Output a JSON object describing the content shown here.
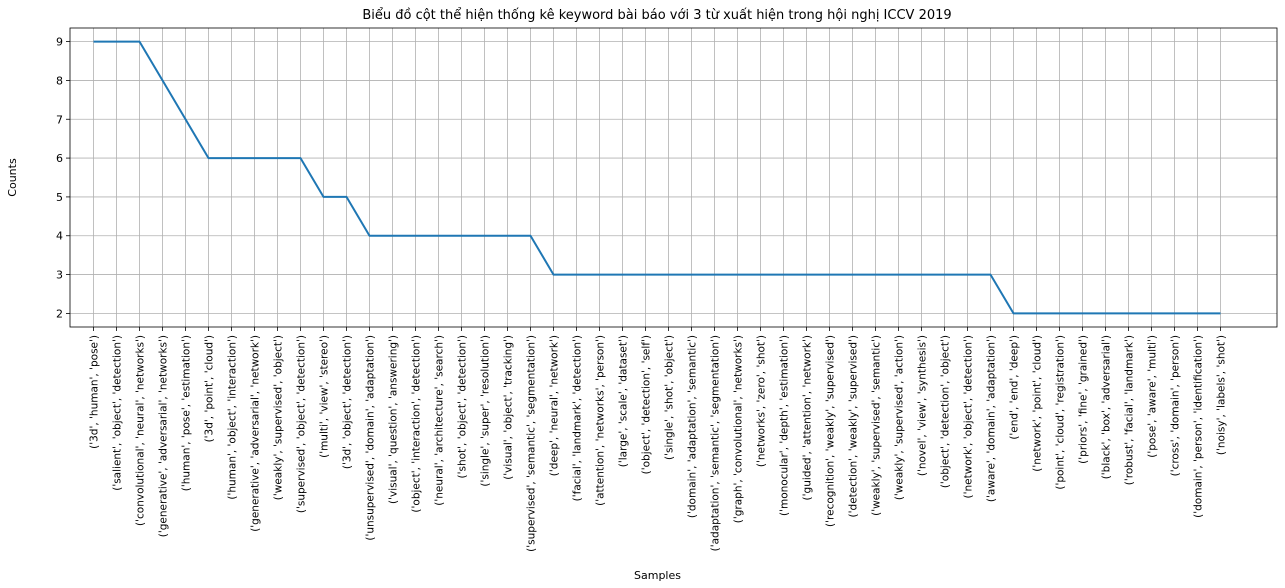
{
  "chart_data": {
    "type": "line",
    "title": "Biểu đồ cột thể hiện thống kê keyword bài báo với 3 từ xuất hiện trong hội nghị ICCV 2019",
    "xlabel": "Samples",
    "ylabel": "Counts",
    "ylim": [
      1.65,
      9.35
    ],
    "yticks": [
      2,
      3,
      4,
      5,
      6,
      7,
      8,
      9
    ],
    "grid": true,
    "line_color": "#1f77b4",
    "categories": [
      "('3d', 'human', 'pose')",
      "('salient', 'object', 'detection')",
      "('convolutional', 'neural', 'networks')",
      "('generative', 'adversarial', 'networks')",
      "('human', 'pose', 'estimation')",
      "('3d', 'point', 'cloud')",
      "('human', 'object', 'interaction')",
      "('generative', 'adversarial', 'network')",
      "('weakly', 'supervised', 'object')",
      "('supervised', 'object', 'detection')",
      "('multi', 'view', 'stereo')",
      "('3d', 'object', 'detection')",
      "('unsupervised', 'domain', 'adaptation')",
      "('visual', 'question', 'answering')",
      "('object', 'interaction', 'detection')",
      "('neural', 'architecture', 'search')",
      "('shot', 'object', 'detection')",
      "('single', 'super', 'resolution')",
      "('visual', 'object', 'tracking')",
      "('supervised', 'semantic', 'segmentation')",
      "('deep', 'neural', 'network')",
      "('facial', 'landmark', 'detection')",
      "('attention', 'networks', 'person')",
      "('large', 'scale', 'dataset')",
      "('object', 'detection', 'self')",
      "('single', 'shot', 'object')",
      "('domain', 'adaptation', 'semantic')",
      "('adaptation', 'semantic', 'segmentation')",
      "('graph', 'convolutional', 'networks')",
      "('networks', 'zero', 'shot')",
      "('monocular', 'depth', 'estimation')",
      "('guided', 'attention', 'network')",
      "('recognition', 'weakly', 'supervised')",
      "('detection', 'weakly', 'supervised')",
      "('weakly', 'supervised', 'semantic')",
      "('weakly', 'supervised', 'action')",
      "('novel', 'view', 'synthesis')",
      "('object', 'detection', 'object')",
      "('network', 'object', 'detection')",
      "('aware', 'domain', 'adaptation')",
      "('end', 'end', 'deep')",
      "('network', 'point', 'cloud')",
      "('point', 'cloud', 'registration')",
      "('priors', 'fine', 'grained')",
      "('black', 'box', 'adversarial')",
      "('robust', 'facial', 'landmark')",
      "('pose', 'aware', 'multi')",
      "('cross', 'domain', 'person')",
      "('domain', 'person', 'identification')",
      "('noisy', 'labels', 'shot')"
    ],
    "values": [
      9,
      9,
      9,
      8,
      7,
      6,
      6,
      6,
      6,
      6,
      5,
      5,
      4,
      4,
      4,
      4,
      4,
      4,
      4,
      4,
      3,
      3,
      3,
      3,
      3,
      3,
      3,
      3,
      3,
      3,
      3,
      3,
      3,
      3,
      3,
      3,
      3,
      3,
      3,
      3,
      2,
      2,
      2,
      2,
      2,
      2,
      2,
      2,
      2,
      2
    ]
  }
}
